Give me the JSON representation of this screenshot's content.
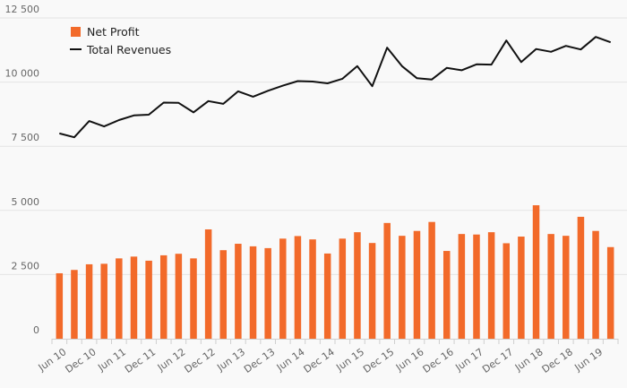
{
  "chart_data": {
    "type": "bar+line",
    "title": "",
    "xlabel": "",
    "ylabel": "",
    "ylim": [
      0,
      12500
    ],
    "yticks": [
      0,
      2500,
      5000,
      7500,
      10000,
      12500
    ],
    "ytick_labels": [
      "0",
      "2 500",
      "5 000",
      "7 500",
      "10 000",
      "12 500"
    ],
    "grid": true,
    "legend_position": "top-left",
    "x_tick_labels": [
      "Jun 10",
      "Dec 10",
      "Jun 11",
      "Dec 11",
      "Jun 12",
      "Dec 12",
      "Jun 13",
      "Dec 13",
      "Jun 14",
      "Dec 14",
      "Jun 15",
      "Dec 15",
      "Jun 16",
      "Dec 16",
      "Jun 17",
      "Dec 17",
      "Jun 18",
      "Dec 18",
      "Jun 19"
    ],
    "series": [
      {
        "name": "Net Profit",
        "type": "bar",
        "color": "#f26a2a",
        "values": [
          2550,
          2680,
          2900,
          2920,
          3130,
          3200,
          3040,
          3250,
          3310,
          3130,
          4260,
          3450,
          3700,
          3600,
          3530,
          3900,
          4000,
          3870,
          3320,
          3900,
          4150,
          3730,
          4510,
          4010,
          4200,
          4550,
          3420,
          4080,
          4060,
          4150,
          3720,
          3980,
          5200,
          4080,
          4010,
          4750,
          4200,
          3570
        ]
      },
      {
        "name": "Total Revenues",
        "type": "line",
        "color": "#111111",
        "values": [
          8000,
          7850,
          8480,
          8270,
          8520,
          8700,
          8730,
          9200,
          9190,
          8820,
          9260,
          9150,
          9640,
          9430,
          9660,
          9860,
          10040,
          10020,
          9950,
          10130,
          10620,
          9840,
          11340,
          10620,
          10150,
          10100,
          10550,
          10460,
          10690,
          10680,
          11620,
          10780,
          11290,
          11180,
          11410,
          11270,
          11760,
          11550
        ]
      }
    ]
  }
}
